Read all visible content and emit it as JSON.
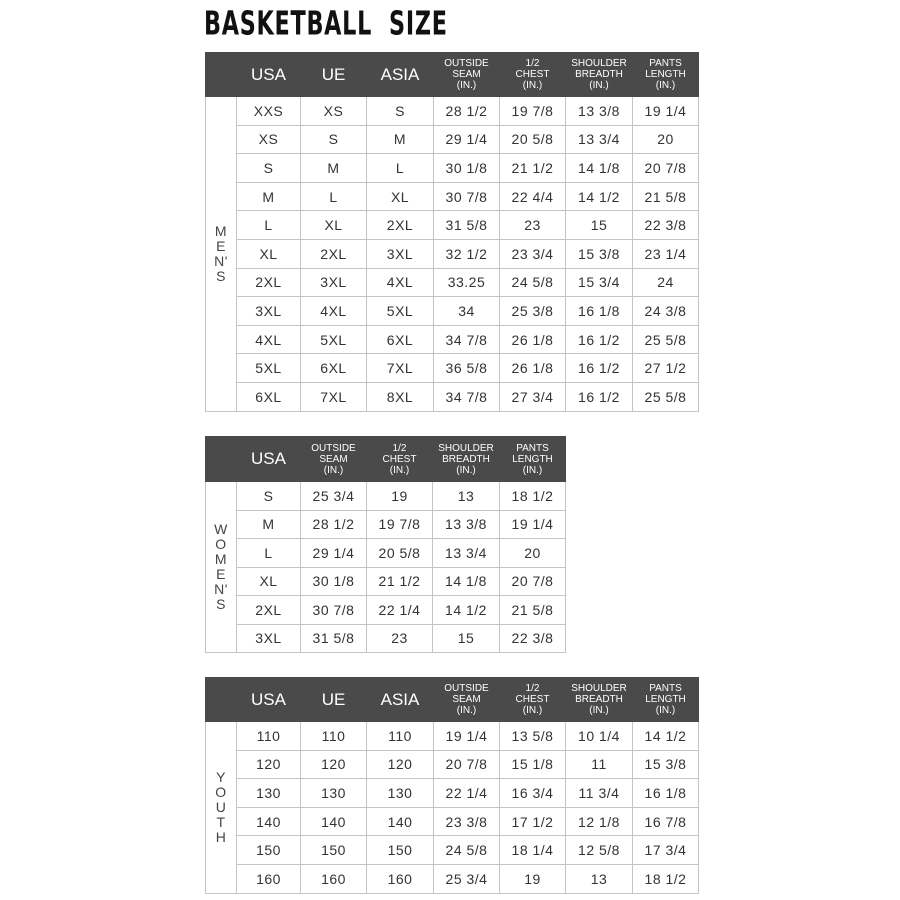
{
  "title": "BASKETBALL  SIZE",
  "colors": {
    "header_bg": "#4a4a4a",
    "header_text": "#ffffff",
    "border": "#c4c4c4",
    "text": "#333333"
  },
  "tables": [
    {
      "id": "men",
      "side_label": [
        "M",
        "E",
        "N'",
        "S"
      ],
      "headers": [
        [
          "USA"
        ],
        [
          "UE"
        ],
        [
          "ASIA"
        ],
        [
          "OUTSIDE",
          "SEAM",
          "(IN.)"
        ],
        [
          "1/2",
          "CHEST",
          "(IN.)"
        ],
        [
          "SHOULDER",
          "BREADTH",
          "(IN.)"
        ],
        [
          "PANTS",
          "LENGTH",
          "(IN.)"
        ]
      ],
      "rows": [
        [
          "XXS",
          "XS",
          "S",
          "28 1/2",
          "19 7/8",
          "13 3/8",
          "19 1/4"
        ],
        [
          "XS",
          "S",
          "M",
          "29 1/4",
          "20 5/8",
          "13 3/4",
          "20"
        ],
        [
          "S",
          "M",
          "L",
          "30 1/8",
          "21 1/2",
          "14 1/8",
          "20 7/8"
        ],
        [
          "M",
          "L",
          "XL",
          "30 7/8",
          "22 4/4",
          "14 1/2",
          "21 5/8"
        ],
        [
          "L",
          "XL",
          "2XL",
          "31 5/8",
          "23",
          "15",
          "22 3/8"
        ],
        [
          "XL",
          "2XL",
          "3XL",
          "32 1/2",
          "23 3/4",
          "15 3/8",
          "23 1/4"
        ],
        [
          "2XL",
          "3XL",
          "4XL",
          "33.25",
          "24 5/8",
          "15 3/4",
          "24"
        ],
        [
          "3XL",
          "4XL",
          "5XL",
          "34",
          "25 3/8",
          "16 1/8",
          "24 3/8"
        ],
        [
          "4XL",
          "5XL",
          "6XL",
          "34 7/8",
          "26 1/8",
          "16 1/2",
          "25 5/8"
        ],
        [
          "5XL",
          "6XL",
          "7XL",
          "36 5/8",
          "26 1/8",
          "16 1/2",
          "27 1/2"
        ],
        [
          "6XL",
          "7XL",
          "8XL",
          "34 7/8",
          "27 3/4",
          "16 1/2",
          "25 5/8"
        ]
      ]
    },
    {
      "id": "women",
      "side_label": [
        "W",
        "O",
        "M",
        "E",
        "N'",
        "S"
      ],
      "headers": [
        [
          "USA"
        ],
        [
          "OUTSIDE",
          "SEAM",
          "(IN.)"
        ],
        [
          "1/2",
          "CHEST",
          "(IN.)"
        ],
        [
          "SHOULDER",
          "BREADTH",
          "(IN.)"
        ],
        [
          "PANTS",
          "LENGTH",
          "(IN.)"
        ]
      ],
      "rows": [
        [
          "S",
          "25 3/4",
          "19",
          "13",
          "18 1/2"
        ],
        [
          "M",
          "28 1/2",
          "19 7/8",
          "13 3/8",
          "19 1/4"
        ],
        [
          "L",
          "29 1/4",
          "20 5/8",
          "13 3/4",
          "20"
        ],
        [
          "XL",
          "30 1/8",
          "21 1/2",
          "14 1/8",
          "20 7/8"
        ],
        [
          "2XL",
          "30 7/8",
          "22 1/4",
          "14 1/2",
          "21 5/8"
        ],
        [
          "3XL",
          "31 5/8",
          "23",
          "15",
          "22 3/8"
        ]
      ]
    },
    {
      "id": "youth",
      "side_label": [
        "Y",
        "O",
        "U",
        "T",
        "H"
      ],
      "headers": [
        [
          "USA"
        ],
        [
          "UE"
        ],
        [
          "ASIA"
        ],
        [
          "OUTSIDE",
          "SEAM",
          "(IN.)"
        ],
        [
          "1/2",
          "CHEST",
          "(IN.)"
        ],
        [
          "SHOULDER",
          "BREADTH",
          "(IN.)"
        ],
        [
          "PANTS",
          "LENGTH",
          "(IN.)"
        ]
      ],
      "rows": [
        [
          "110",
          "110",
          "110",
          "19 1/4",
          "13 5/8",
          "10 1/4",
          "14 1/2"
        ],
        [
          "120",
          "120",
          "120",
          "20 7/8",
          "15 1/8",
          "11",
          "15 3/8"
        ],
        [
          "130",
          "130",
          "130",
          "22 1/4",
          "16 3/4",
          "11 3/4",
          "16 1/8"
        ],
        [
          "140",
          "140",
          "140",
          "23 3/8",
          "17 1/2",
          "12 1/8",
          "16 7/8"
        ],
        [
          "150",
          "150",
          "150",
          "24 5/8",
          "18 1/4",
          "12 5/8",
          "17 3/4"
        ],
        [
          "160",
          "160",
          "160",
          "25 3/4",
          "19",
          "13",
          "18 1/2"
        ]
      ]
    }
  ]
}
